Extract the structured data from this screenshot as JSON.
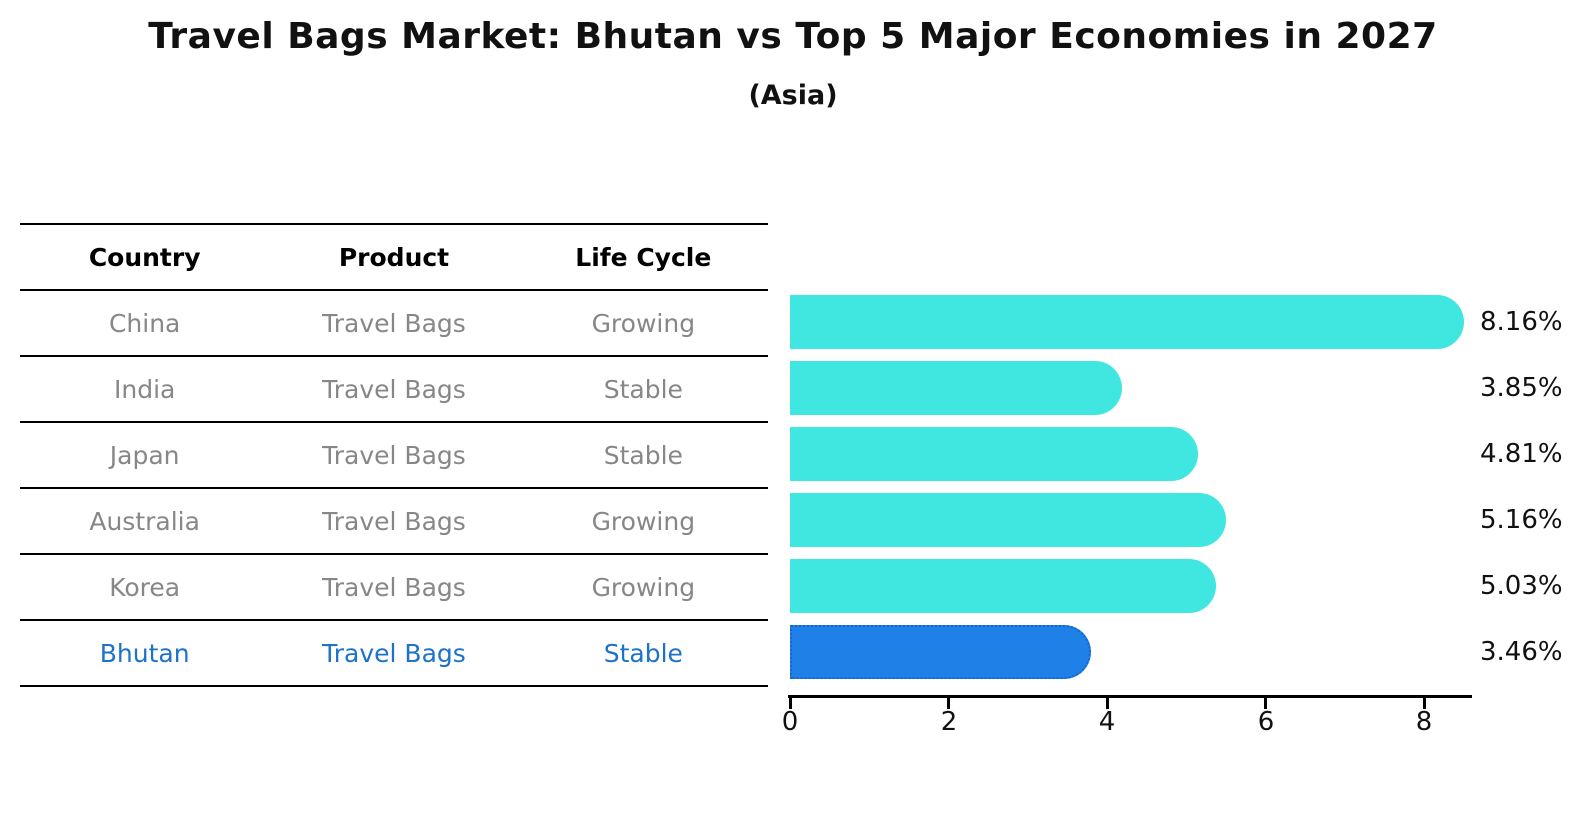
{
  "header": {
    "title": "Travel Bags Market: Bhutan vs Top 5 Major Economies in 2027",
    "subtitle": "(Asia)"
  },
  "table": {
    "columns": [
      "Country",
      "Product",
      "Life Cycle"
    ],
    "rows": [
      {
        "country": "China",
        "product": "Travel Bags",
        "life_cycle": "Growing",
        "highlight": false
      },
      {
        "country": "India",
        "product": "Travel Bags",
        "life_cycle": "Stable",
        "highlight": false
      },
      {
        "country": "Japan",
        "product": "Travel Bags",
        "life_cycle": "Stable",
        "highlight": false
      },
      {
        "country": "Australia",
        "product": "Travel Bags",
        "life_cycle": "Growing",
        "highlight": false
      },
      {
        "country": "Korea",
        "product": "Travel Bags",
        "life_cycle": "Growing",
        "highlight": false
      },
      {
        "country": "Bhutan",
        "product": "Travel Bags",
        "life_cycle": "Stable",
        "highlight": true
      }
    ]
  },
  "chart_data": {
    "type": "bar",
    "orientation": "horizontal",
    "title": "Travel Bags Market: Bhutan vs Top 5 Major Economies in 2027",
    "subtitle": "(Asia)",
    "categories": [
      "China",
      "India",
      "Japan",
      "Australia",
      "Korea",
      "Bhutan"
    ],
    "values": [
      8.16,
      3.85,
      4.81,
      5.16,
      5.03,
      3.46
    ],
    "value_labels": [
      "8.16%",
      "3.85%",
      "4.81%",
      "5.16%",
      "5.03%",
      "3.46%"
    ],
    "highlight_index": 5,
    "x_ticks": [
      0,
      2,
      4,
      6,
      8
    ],
    "x_tick_labels": [
      "0",
      "2",
      "4",
      "6",
      "8"
    ],
    "xlim": [
      0,
      8.6
    ],
    "grid": false,
    "legend": "none",
    "bar_color": "#40e6e0",
    "highlight_bar_color": "#1f80e8",
    "highlight_border_color": "#1566cb",
    "highlight_text_color": "#1c73c9"
  },
  "colors": {
    "background": "#ffffff",
    "table_line": "#000000",
    "table_text": "#878787",
    "header_text": "#000000",
    "axis": "#000000"
  }
}
